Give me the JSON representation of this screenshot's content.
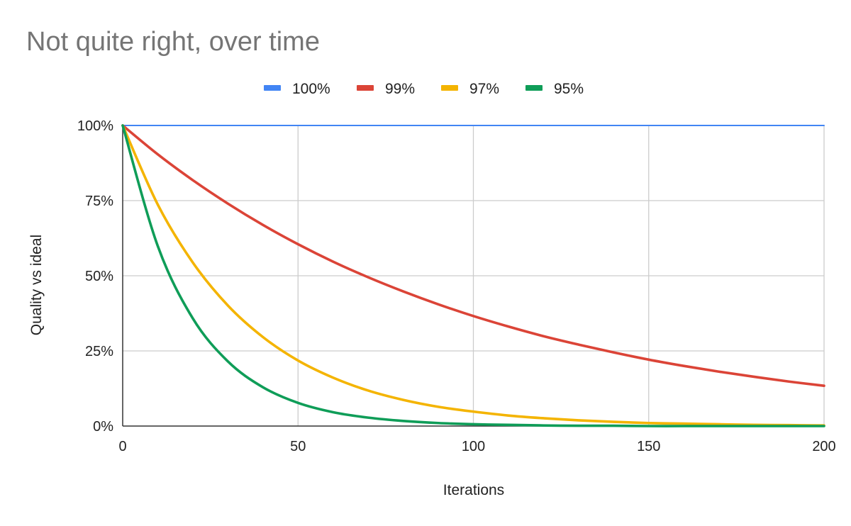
{
  "chart_data": {
    "type": "line",
    "title": "Not quite right, over time",
    "xlabel": "Iterations",
    "ylabel": "Quality vs ideal",
    "xlim": [
      0,
      200
    ],
    "ylim": [
      0,
      1
    ],
    "x_ticks": [
      0,
      50,
      100,
      150,
      200
    ],
    "x_tick_labels": [
      "0",
      "50",
      "100",
      "150",
      "200"
    ],
    "y_ticks": [
      0,
      0.25,
      0.5,
      0.75,
      1
    ],
    "y_tick_labels": [
      "0%",
      "25%",
      "50%",
      "75%",
      "100%"
    ],
    "grid": true,
    "legend_position": "top",
    "x": [
      0,
      10,
      20,
      30,
      40,
      50,
      60,
      70,
      80,
      90,
      100,
      110,
      120,
      130,
      140,
      150,
      160,
      170,
      180,
      190,
      200
    ],
    "series": [
      {
        "name": "100%",
        "color": "#4285f4",
        "values": [
          1,
          1,
          1,
          1,
          1,
          1,
          1,
          1,
          1,
          1,
          1,
          1,
          1,
          1,
          1,
          1,
          1,
          1,
          1,
          1,
          1
        ]
      },
      {
        "name": "99%",
        "color": "#db4437",
        "values": [
          1,
          0.904,
          0.818,
          0.74,
          0.669,
          0.605,
          0.547,
          0.495,
          0.448,
          0.405,
          0.366,
          0.331,
          0.299,
          0.271,
          0.245,
          0.221,
          0.2,
          0.181,
          0.164,
          0.148,
          0.134
        ]
      },
      {
        "name": "97%",
        "color": "#f4b400",
        "values": [
          1,
          0.737,
          0.544,
          0.401,
          0.296,
          0.218,
          0.161,
          0.118,
          0.087,
          0.064,
          0.048,
          0.035,
          0.026,
          0.019,
          0.014,
          0.01,
          0.008,
          0.006,
          0.004,
          0.003,
          0.002
        ]
      },
      {
        "name": "95%",
        "color": "#0f9d58",
        "values": [
          1,
          0.599,
          0.358,
          0.215,
          0.129,
          0.077,
          0.046,
          0.028,
          0.017,
          0.01,
          0.006,
          0.004,
          0.002,
          0.001,
          0.001,
          0,
          0,
          0,
          0,
          0,
          0
        ]
      }
    ]
  }
}
